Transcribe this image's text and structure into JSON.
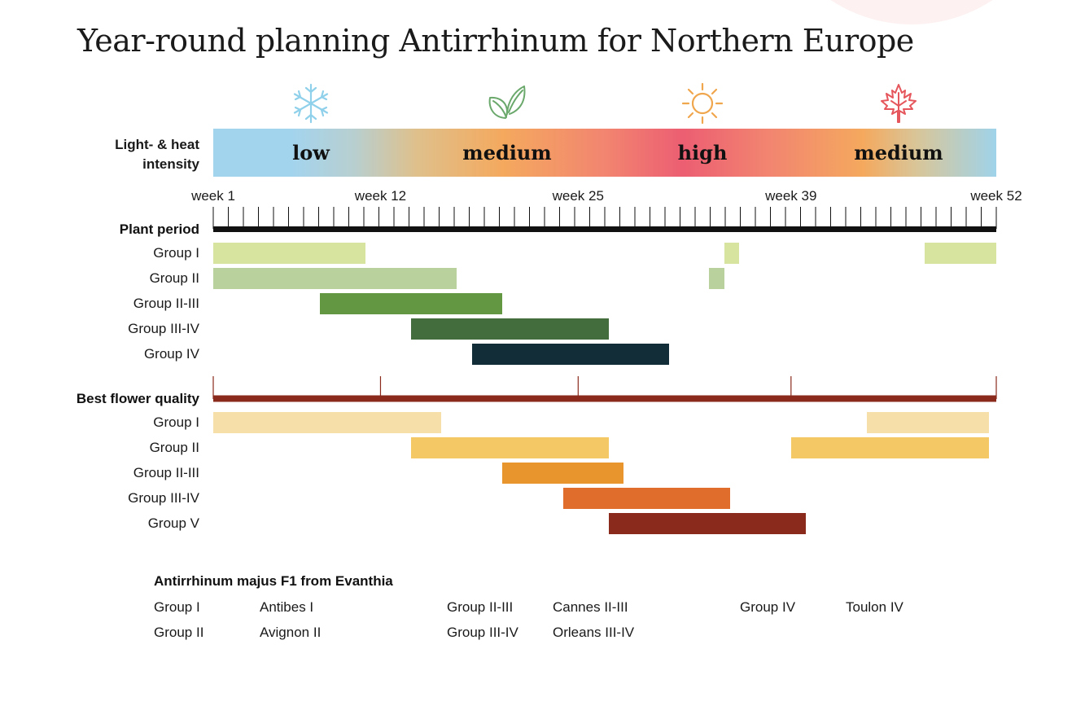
{
  "title": "Year-round planning Antirrhinum for Northern Europe",
  "icons": [
    {
      "name": "snowflake-icon",
      "color": "#8fd0ea"
    },
    {
      "name": "leaf-icon",
      "color": "#6aa86b"
    },
    {
      "name": "sun-icon",
      "color": "#f0a64c"
    },
    {
      "name": "maple-leaf-icon",
      "color": "#e5575c"
    }
  ],
  "intensity": {
    "label_line1": "Light- & heat",
    "label_line2": "intensity",
    "words": [
      "low",
      "medium",
      "high",
      "medium"
    ]
  },
  "weeks": {
    "labels": [
      "week 1",
      "week 12",
      "week 25",
      "week 39",
      "week 52"
    ],
    "values": [
      1,
      12,
      25,
      39,
      52
    ]
  },
  "chart_data": [
    {
      "type": "gantt",
      "title": "Plant period",
      "x_unit": "week",
      "xlim": [
        1,
        52
      ],
      "axis_color": "#111111",
      "series": [
        {
          "name": "Group  I",
          "color": "#d7e4a0",
          "segments": [
            [
              1,
              11
            ],
            [
              34.6,
              35.6
            ],
            [
              47.8,
              52.8
            ]
          ]
        },
        {
          "name": "Group II",
          "color": "#b9d19d",
          "segments": [
            [
              1,
              17
            ],
            [
              33.6,
              34.6
            ]
          ]
        },
        {
          "name": "Group II-III",
          "color": "#649741",
          "segments": [
            [
              8,
              20
            ]
          ]
        },
        {
          "name": "Group III-IV",
          "color": "#446d3d",
          "segments": [
            [
              14,
              27
            ]
          ]
        },
        {
          "name": "Group IV",
          "color": "#132d38",
          "segments": [
            [
              18,
              31
            ]
          ]
        }
      ]
    },
    {
      "type": "gantt",
      "title": "Best flower quality",
      "x_unit": "week",
      "xlim": [
        1,
        52
      ],
      "axis_color": "#8a2a1c",
      "series": [
        {
          "name": "Group  I",
          "color": "#f7dfa9",
          "segments": [
            [
              1,
              16
            ],
            [
              44,
              52
            ]
          ]
        },
        {
          "name": "Group II",
          "color": "#f4c864",
          "segments": [
            [
              14,
              27
            ],
            [
              39,
              52
            ]
          ]
        },
        {
          "name": "Group II-III",
          "color": "#e8952d",
          "segments": [
            [
              20,
              28
            ]
          ]
        },
        {
          "name": "Group III-IV",
          "color": "#e06d2b",
          "segments": [
            [
              24,
              35
            ]
          ]
        },
        {
          "name": "Group V",
          "color": "#8a2a1c",
          "segments": [
            [
              27,
              40
            ]
          ]
        }
      ]
    }
  ],
  "legend": {
    "title": "Antirrhinum majus F1 from Evanthia",
    "col1": [
      "Group  I",
      "Group II"
    ],
    "col2": [
      "Antibes I",
      "Avignon II"
    ],
    "col3": [
      "Group II-III",
      "Group III-IV"
    ],
    "col4": [
      "Cannes II-III",
      "Orleans III-IV"
    ],
    "col5": [
      "Group IV"
    ],
    "col6": [
      "Toulon IV"
    ]
  }
}
